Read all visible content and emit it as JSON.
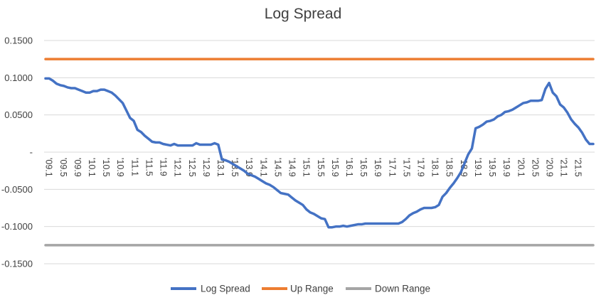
{
  "chart_data": {
    "type": "line",
    "title": "Log Spread",
    "xlabel": "",
    "ylabel": "",
    "ylim": [
      -0.15,
      0.15
    ],
    "y_tick_labels": [
      "0.1500",
      "0.1000",
      "0.0500",
      "-",
      "-0.0500",
      "-0.1000",
      "-0.1500"
    ],
    "y_tick_values": [
      0.15,
      0.1,
      0.05,
      0,
      -0.05,
      -0.1,
      -0.15
    ],
    "x_tick_labels": [
      "'09.1",
      "'09.5",
      "'09.9",
      "'10.1",
      "'10.5",
      "'10.9",
      "'11.1",
      "'11.5",
      "'11.9",
      "'12.1",
      "'12.5",
      "'12.9",
      "'13.1",
      "'13.5",
      "'13.9",
      "'14.1",
      "'14.5",
      "'14.9",
      "'15.1",
      "'15.5",
      "'15.9",
      "'16.1",
      "'16.5",
      "'16.9",
      "'17.1",
      "'17.5",
      "'17.9",
      "'18.1",
      "'18.5",
      "'18.9",
      "'19.1",
      "'19.5",
      "'19.9",
      "'20.1",
      "'20.5",
      "'20.9",
      "'21.1",
      "'21.5"
    ],
    "grid": true,
    "legend_position": "bottom",
    "colors": {
      "log_spread": "#4472C4",
      "up_range": "#ED7D31",
      "down_range": "#A5A5A5",
      "grid": "#D9D9D9"
    },
    "series": [
      {
        "name": "Log Spread",
        "values": [
          0.099,
          0.099,
          0.096,
          0.092,
          0.09,
          0.089,
          0.087,
          0.086,
          0.086,
          0.084,
          0.082,
          0.08,
          0.08,
          0.082,
          0.082,
          0.084,
          0.084,
          0.082,
          0.08,
          0.076,
          0.071,
          0.066,
          0.056,
          0.046,
          0.042,
          0.03,
          0.027,
          0.022,
          0.018,
          0.014,
          0.013,
          0.013,
          0.011,
          0.01,
          0.009,
          0.011,
          0.009,
          0.009,
          0.009,
          0.009,
          0.009,
          0.012,
          0.01,
          0.01,
          0.01,
          0.01,
          0.012,
          0.01,
          -0.01,
          -0.011,
          -0.013,
          -0.016,
          -0.019,
          -0.022,
          -0.025,
          -0.029,
          -0.031,
          -0.033,
          -0.036,
          -0.039,
          -0.042,
          -0.044,
          -0.047,
          -0.051,
          -0.055,
          -0.056,
          -0.057,
          -0.061,
          -0.065,
          -0.068,
          -0.071,
          -0.077,
          -0.081,
          -0.083,
          -0.086,
          -0.089,
          -0.09,
          -0.101,
          -0.101,
          -0.1,
          -0.1,
          -0.099,
          -0.1,
          -0.099,
          -0.098,
          -0.097,
          -0.097,
          -0.096,
          -0.096,
          -0.096,
          -0.096,
          -0.096,
          -0.096,
          -0.096,
          -0.096,
          -0.096,
          -0.096,
          -0.094,
          -0.09,
          -0.085,
          -0.082,
          -0.08,
          -0.077,
          -0.075,
          -0.075,
          -0.075,
          -0.074,
          -0.071,
          -0.06,
          -0.055,
          -0.048,
          -0.042,
          -0.035,
          -0.027,
          -0.015,
          -0.003,
          0.005,
          0.032,
          0.034,
          0.037,
          0.041,
          0.042,
          0.044,
          0.048,
          0.05,
          0.054,
          0.055,
          0.057,
          0.06,
          0.063,
          0.066,
          0.067,
          0.069,
          0.069,
          0.069,
          0.07,
          0.085,
          0.093,
          0.08,
          0.075,
          0.064,
          0.06,
          0.053,
          0.044,
          0.038,
          0.033,
          0.026,
          0.017,
          0.011,
          0.011
        ]
      },
      {
        "name": "Up Range",
        "values": [
          0.125,
          0.125
        ]
      },
      {
        "name": "Down Range",
        "values": [
          -0.125,
          -0.125
        ]
      }
    ]
  }
}
